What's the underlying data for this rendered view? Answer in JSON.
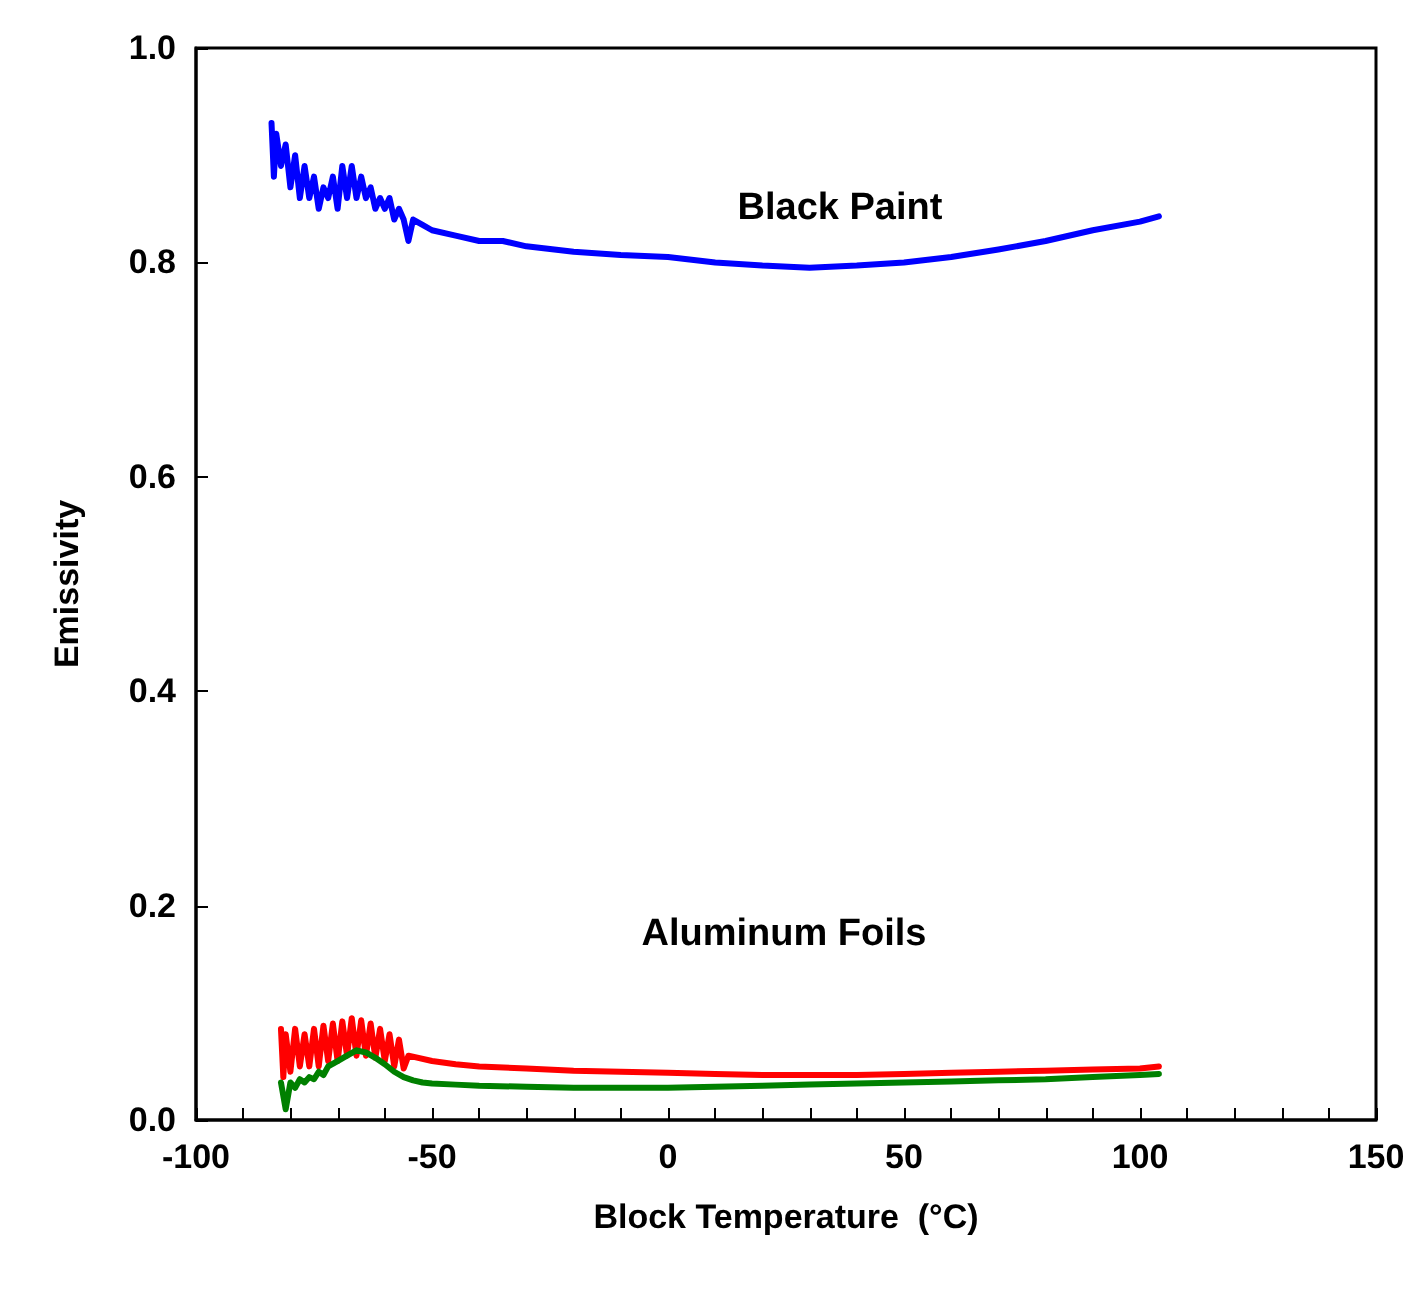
{
  "chart_data": {
    "type": "line",
    "xlabel": "Block Temperature  (°C)",
    "ylabel": "Emissivity",
    "xlim": [
      -100,
      150
    ],
    "ylim": [
      0,
      1
    ],
    "xticks": [
      -100,
      {
        "value": -90,
        "label": null
      },
      {
        "value": -80,
        "label": null
      },
      {
        "value": -70,
        "label": null
      },
      {
        "value": -60,
        "label": null
      },
      -50,
      {
        "value": -40,
        "label": null
      },
      {
        "value": -30,
        "label": null
      },
      {
        "value": -20,
        "label": null
      },
      {
        "value": -10,
        "label": null
      },
      0,
      {
        "value": 10,
        "label": null
      },
      {
        "value": 20,
        "label": null
      },
      {
        "value": 30,
        "label": null
      },
      {
        "value": 40,
        "label": null
      },
      50,
      {
        "value": 60,
        "label": null
      },
      {
        "value": 70,
        "label": null
      },
      {
        "value": 80,
        "label": null
      },
      {
        "value": 90,
        "label": null
      },
      100,
      {
        "value": 110,
        "label": null
      },
      {
        "value": 120,
        "label": null
      },
      {
        "value": 130,
        "label": null
      },
      {
        "value": 140,
        "label": null
      },
      150
    ],
    "yticks": [
      {
        "value": 0,
        "label": "0.0"
      },
      {
        "value": 0.2,
        "label": "0.2"
      },
      {
        "value": 0.4,
        "label": "0.4"
      },
      {
        "value": 0.6,
        "label": "0.6"
      },
      {
        "value": 0.8,
        "label": "0.8"
      },
      {
        "value": 1,
        "label": "1.0"
      }
    ],
    "marker": "none",
    "line_style": "solid",
    "annotations": [
      "Black Paint",
      "Aluminum Foils"
    ],
    "series": [
      {
        "color": "#0000ff",
        "x": [
          -84,
          -83.5,
          -83,
          -82,
          -81,
          -80,
          -79,
          -78,
          -77,
          -76,
          -75,
          -74,
          -73,
          -72,
          -71,
          -70,
          -69,
          -68,
          -67,
          -66,
          -65,
          -64,
          -63,
          -62,
          -61,
          -60,
          -59,
          -58,
          -57,
          -56,
          -55,
          -54,
          -52,
          -50,
          -45,
          -40,
          -35,
          -30,
          -20,
          -10,
          0,
          10,
          20,
          30,
          40,
          50,
          60,
          70,
          80,
          90,
          100,
          104
        ],
        "values": [
          0.93,
          0.88,
          0.92,
          0.89,
          0.91,
          0.87,
          0.9,
          0.86,
          0.89,
          0.86,
          0.88,
          0.85,
          0.87,
          0.86,
          0.88,
          0.85,
          0.89,
          0.86,
          0.89,
          0.86,
          0.88,
          0.86,
          0.87,
          0.85,
          0.86,
          0.85,
          0.86,
          0.84,
          0.85,
          0.84,
          0.82,
          0.84,
          0.835,
          0.83,
          0.825,
          0.82,
          0.82,
          0.815,
          0.81,
          0.807,
          0.805,
          0.8,
          0.797,
          0.795,
          0.797,
          0.8,
          0.805,
          0.812,
          0.82,
          0.83,
          0.838,
          0.843
        ]
      },
      {
        "color": "#ff0000",
        "x": [
          -82,
          -81.5,
          -81,
          -80,
          -79,
          -78,
          -77,
          -76,
          -75,
          -74,
          -73,
          -72,
          -71,
          -70,
          -69,
          -68,
          -67,
          -66,
          -65,
          -64,
          -63,
          -62,
          -61,
          -60,
          -59,
          -58,
          -57,
          -56,
          -55,
          -50,
          -45,
          -40,
          -30,
          -20,
          -10,
          0,
          10,
          20,
          30,
          40,
          50,
          60,
          70,
          80,
          90,
          100,
          104
        ],
        "values": [
          0.085,
          0.04,
          0.08,
          0.045,
          0.085,
          0.05,
          0.08,
          0.05,
          0.085,
          0.05,
          0.088,
          0.055,
          0.09,
          0.055,
          0.092,
          0.06,
          0.095,
          0.06,
          0.093,
          0.06,
          0.09,
          0.058,
          0.085,
          0.055,
          0.08,
          0.05,
          0.075,
          0.048,
          0.06,
          0.055,
          0.052,
          0.05,
          0.048,
          0.046,
          0.045,
          0.044,
          0.043,
          0.042,
          0.042,
          0.042,
          0.043,
          0.044,
          0.045,
          0.046,
          0.047,
          0.048,
          0.05
        ]
      },
      {
        "color": "#008000",
        "x": [
          -82,
          -81,
          -80,
          -79,
          -78,
          -77,
          -76,
          -75,
          -74,
          -73,
          -72,
          -70,
          -68,
          -66,
          -64,
          -62,
          -60,
          -58,
          -56,
          -54,
          -52,
          -50,
          -45,
          -40,
          -30,
          -20,
          -10,
          0,
          10,
          20,
          30,
          40,
          50,
          60,
          70,
          80,
          90,
          100,
          104
        ],
        "values": [
          0.035,
          0.01,
          0.035,
          0.03,
          0.038,
          0.035,
          0.04,
          0.038,
          0.045,
          0.042,
          0.05,
          0.055,
          0.06,
          0.065,
          0.063,
          0.058,
          0.052,
          0.045,
          0.04,
          0.037,
          0.035,
          0.034,
          0.033,
          0.032,
          0.031,
          0.03,
          0.03,
          0.03,
          0.031,
          0.032,
          0.033,
          0.034,
          0.035,
          0.036,
          0.037,
          0.038,
          0.04,
          0.042,
          0.043
        ]
      }
    ]
  }
}
